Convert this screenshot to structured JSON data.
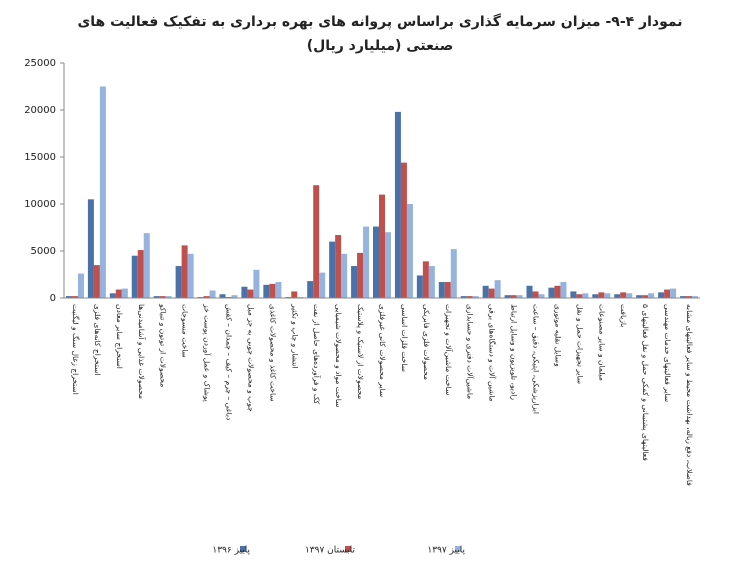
{
  "chart_data": {
    "type": "bar",
    "title": "نمودار ۴-۹- میزان سرمایه گذاری براساس پروانه های بهره برداری به تفکیک فعالیت های",
    "subtitle": "صنعتی (میلیارد ریال)",
    "categories": [
      "استخراج زغال سنگ و لیگنیت",
      "استخراج کانه‌های فلزی",
      "استخراج سایر معادن",
      "محصولات غذایی و آشامیدنی‌ها",
      "محصولات از توتون و تنباکو",
      "ساخت منسوجات",
      "پوشاک و عمل آوردن پوست خز",
      "دباغی – چرم – کیف – چمدان – کفش",
      "چوب و محصولات چوبی به جز مبل",
      "ساخت کاغذ و محصولات کاغذی",
      "انتشار و چاپ و تکثیر",
      "کک و فرآورده‌های حاصل از نفت",
      "ساخت مواد و محصولات شیمیایی",
      "محصولات از لاستیک و پلاستیک",
      "سایر محصولات کانی غیرفلزی",
      "ساخت فلزات اساسی",
      "محصولات فلزی فابریکی",
      "ساخت ماشین‌آلات و تجهیزات",
      "ماشین‌آلات دفتری و حسابداری",
      "ماشین آلات و دستگاه‌های برقی",
      "رادیو، تلویزیون و وسایل ارتباط",
      "ابزارپزشکی، اپتیکی، دقیق – ساعت",
      "وسایل نقلیه موتوری",
      "سایر تجهیزات حمل و نقل",
      "مبلمان و سایر مصنوعات",
      "بازیافت",
      "فعالیتهای پشتیبانی و کمکی حمل و نقل فعالیتهای ۵",
      "سایر فعالیتهای خدمات مهندسی",
      "فاضلاب، دفع زباله، بهداشت محیط و سایر فعالیتهای مشابه"
    ],
    "series": [
      {
        "name": "پاییز ۱۳۹۶",
        "color": "#4a72a8",
        "values": [
          200,
          10500,
          500,
          4500,
          200,
          3400,
          100,
          400,
          1200,
          1400,
          100,
          1800,
          6000,
          3400,
          7600,
          19800,
          2400,
          1700,
          200,
          1300,
          300,
          1300,
          1100,
          700,
          400,
          400,
          300,
          600,
          200
        ]
      },
      {
        "name": "تابستان ۱۳۹۷",
        "color": "#c0504d",
        "values": [
          200,
          3500,
          900,
          5100,
          200,
          5600,
          200,
          100,
          900,
          1500,
          700,
          12000,
          6700,
          4800,
          11000,
          14400,
          3900,
          1700,
          200,
          1000,
          300,
          700,
          1300,
          400,
          600,
          600,
          300,
          900,
          200
        ]
      },
      {
        "name": "پاییز ۱۳۹۷",
        "color": "#95b3de",
        "values": [
          2600,
          22500,
          1000,
          6900,
          200,
          4700,
          800,
          300,
          3000,
          1700,
          100,
          2700,
          4700,
          7600,
          7000,
          10000,
          3400,
          5200,
          200,
          1900,
          300,
          400,
          1700,
          500,
          500,
          500,
          500,
          1000,
          200
        ]
      }
    ],
    "ylim": [
      0,
      25000
    ],
    "yticks": [
      0,
      5000,
      10000,
      15000,
      20000,
      25000
    ]
  }
}
